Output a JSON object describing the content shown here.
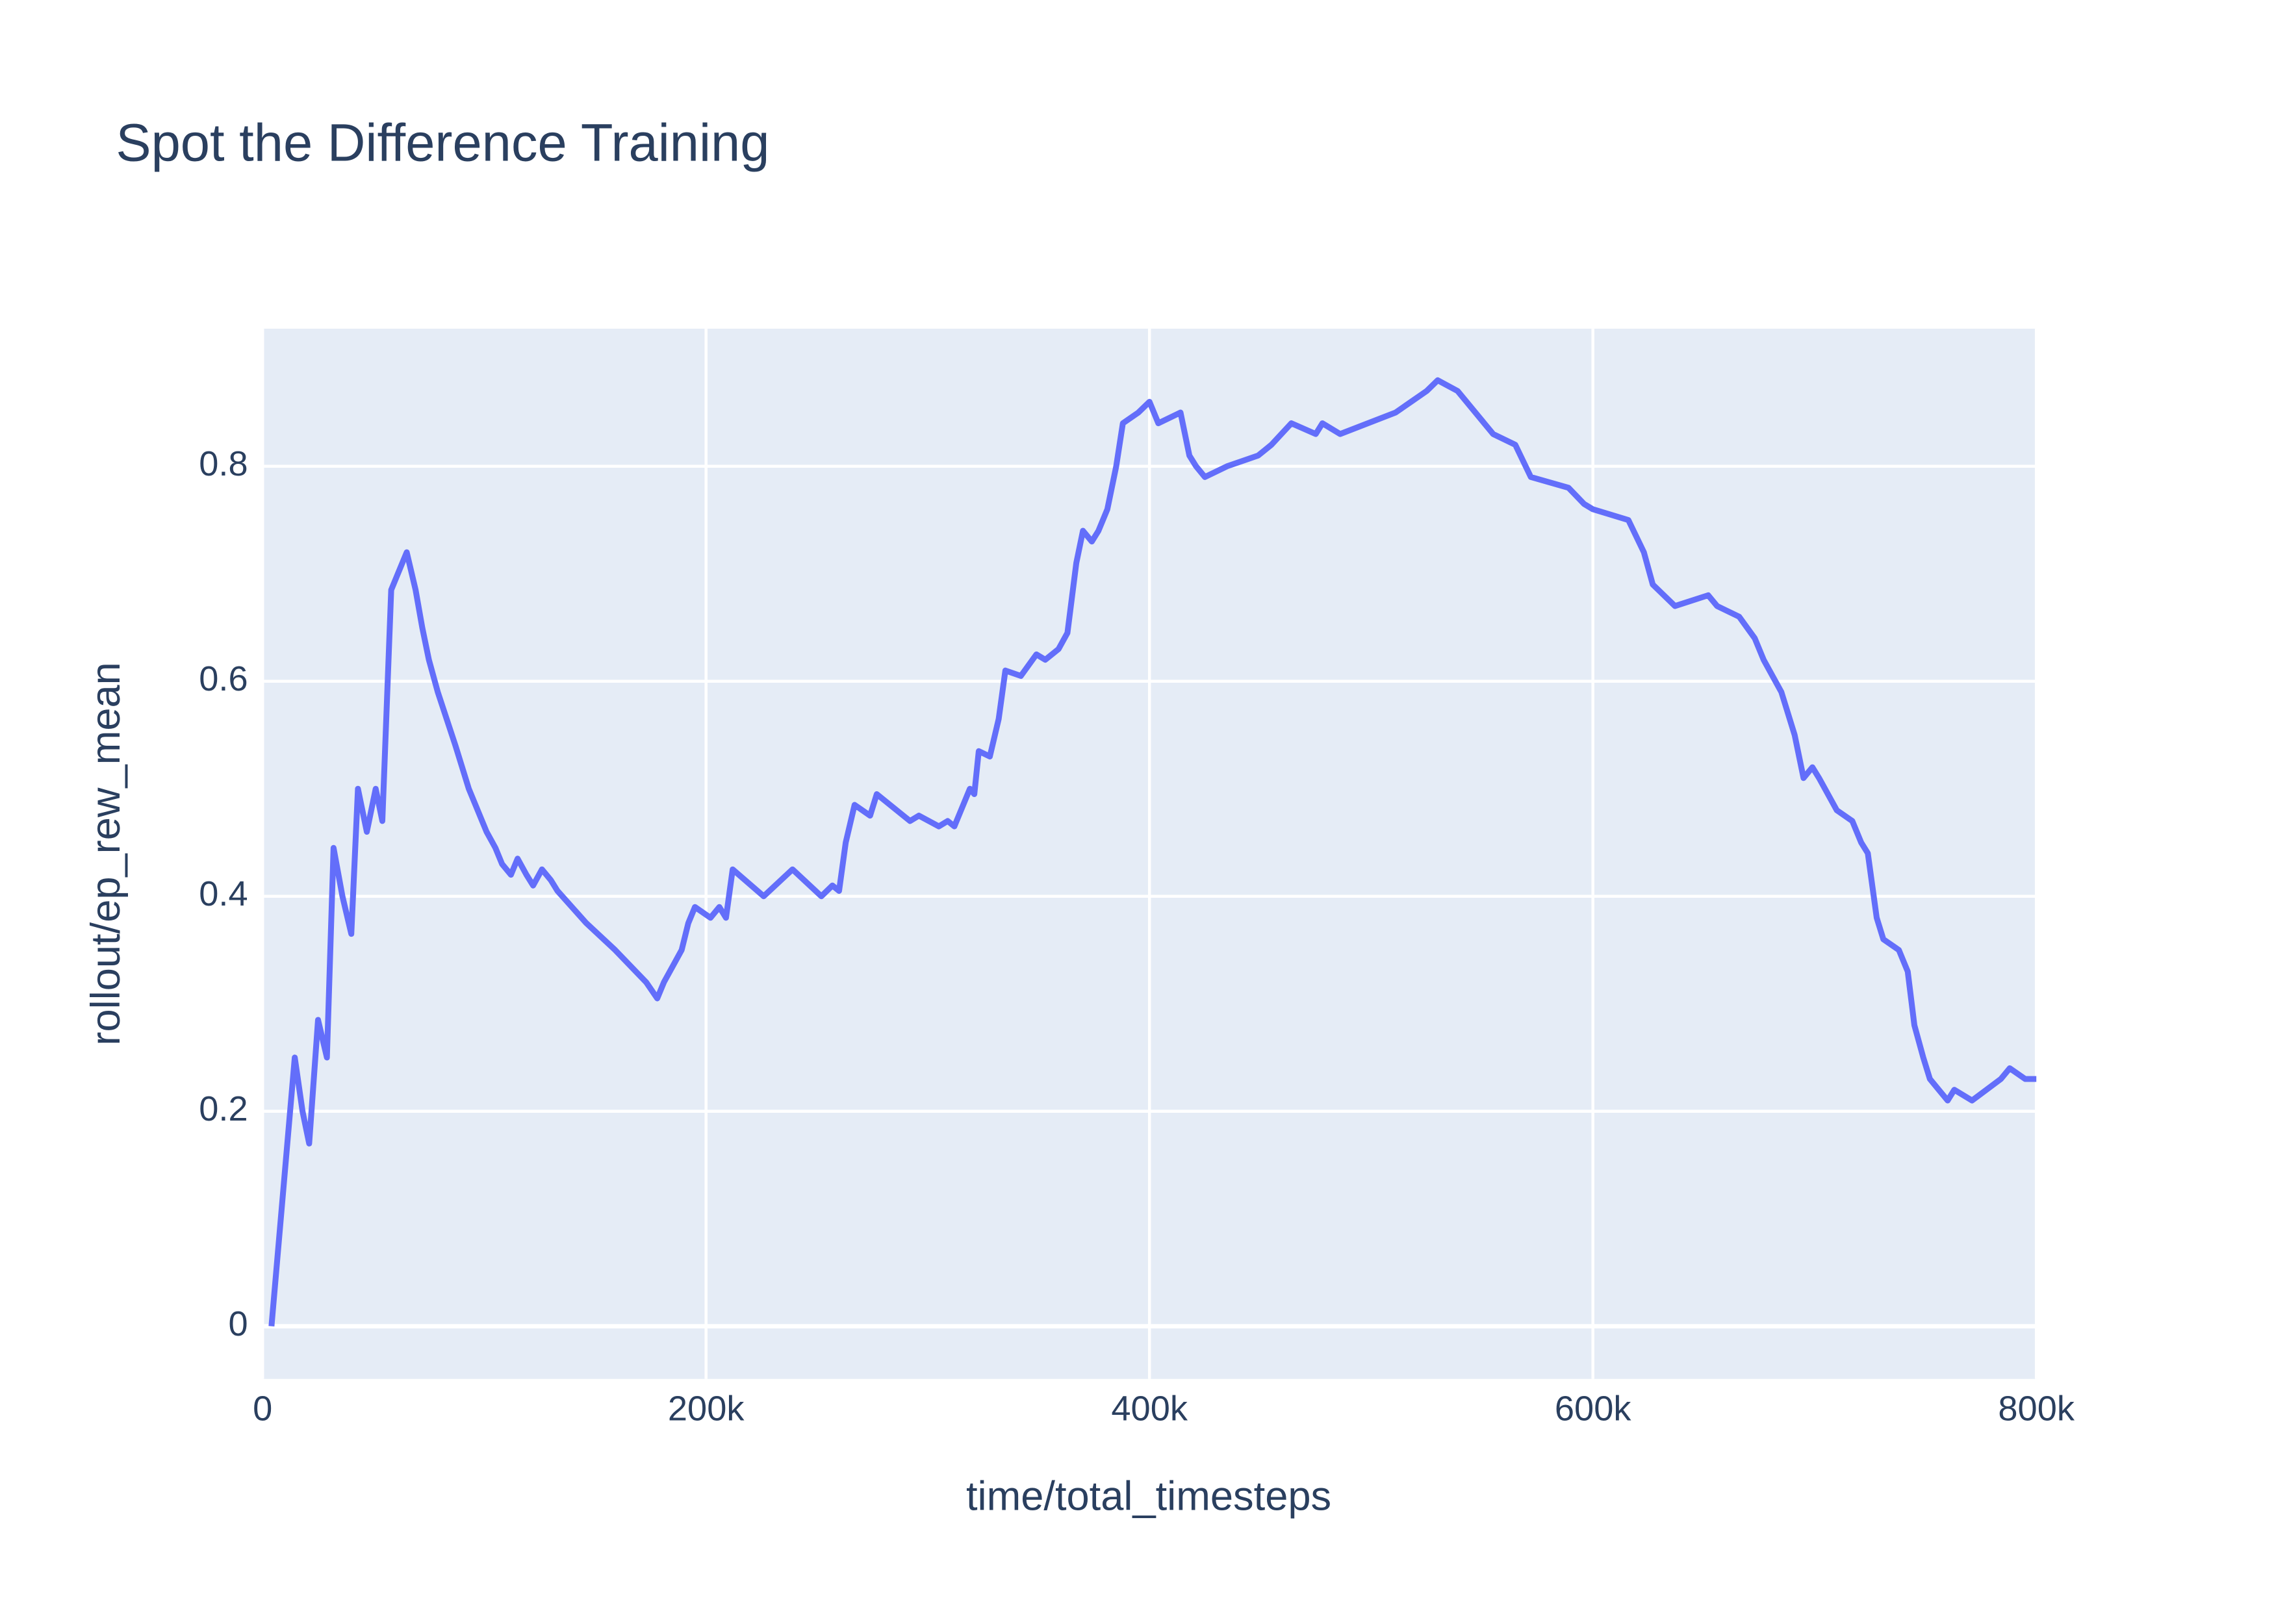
{
  "chart_data": {
    "type": "line",
    "title": "Spot the Difference Training",
    "x_label": "time/total_timesteps",
    "y_label": "rollout/ep_rew_mean",
    "x": [
      4000,
      14500,
      18000,
      21000,
      25000,
      29000,
      32000,
      36000,
      40000,
      43000,
      47000,
      51000,
      54000,
      58000,
      61000,
      65000,
      69000,
      72000,
      75000,
      79000,
      83000,
      87000,
      90000,
      93000,
      97000,
      101000,
      105000,
      108000,
      112000,
      115000,
      119000,
      122000,
      126000,
      130000,
      133000,
      146000,
      159000,
      173000,
      178000,
      181000,
      185000,
      189000,
      192000,
      195000,
      202000,
      206000,
      209000,
      212000,
      226000,
      239000,
      252000,
      257000,
      260000,
      263000,
      267000,
      274000,
      277000,
      292000,
      296000,
      305000,
      309000,
      312000,
      316000,
      319000,
      321000,
      323000,
      328000,
      332000,
      335000,
      342000,
      349000,
      353000,
      359000,
      363000,
      367000,
      370000,
      374000,
      377000,
      381000,
      385000,
      388000,
      395000,
      400000,
      404000,
      414000,
      418000,
      421000,
      425000,
      435000,
      449000,
      452000,
      455000,
      464000,
      475000,
      478000,
      486000,
      511000,
      518000,
      525000,
      530000,
      539000,
      543000,
      551000,
      555000,
      565000,
      572000,
      589000,
      596000,
      600000,
      616000,
      623000,
      627000,
      637000,
      652000,
      656000,
      666000,
      673000,
      677000,
      685000,
      691000,
      695000,
      699000,
      702000,
      710000,
      717000,
      721000,
      724000,
      728000,
      731000,
      738000,
      742000,
      745000,
      749000,
      752000,
      756000,
      760000,
      763000,
      771000,
      784000,
      788000,
      795000,
      800000
    ],
    "series": [
      {
        "name": "rollout/ep_rew_mean",
        "color": "#636efa",
        "values": [
          0,
          0.25,
          0.2,
          0.17,
          0.285,
          0.25,
          0.445,
          0.4,
          0.365,
          0.5,
          0.46,
          0.5,
          0.47,
          0.685,
          0.7,
          0.72,
          0.685,
          0.65,
          0.62,
          0.59,
          0.565,
          0.54,
          0.52,
          0.5,
          0.48,
          0.46,
          0.445,
          0.43,
          0.42,
          0.435,
          0.42,
          0.41,
          0.425,
          0.415,
          0.405,
          0.375,
          0.35,
          0.32,
          0.305,
          0.32,
          0.335,
          0.35,
          0.375,
          0.39,
          0.38,
          0.39,
          0.38,
          0.425,
          0.4,
          0.425,
          0.4,
          0.41,
          0.405,
          0.45,
          0.485,
          0.475,
          0.495,
          0.47,
          0.475,
          0.465,
          0.47,
          0.465,
          0.485,
          0.5,
          0.495,
          0.535,
          0.53,
          0.565,
          0.61,
          0.605,
          0.625,
          0.62,
          0.63,
          0.645,
          0.71,
          0.74,
          0.73,
          0.74,
          0.76,
          0.8,
          0.84,
          0.85,
          0.86,
          0.84,
          0.85,
          0.81,
          0.8,
          0.79,
          0.8,
          0.81,
          0.815,
          0.82,
          0.84,
          0.83,
          0.84,
          0.83,
          0.85,
          0.86,
          0.87,
          0.88,
          0.87,
          0.86,
          0.84,
          0.83,
          0.82,
          0.79,
          0.78,
          0.765,
          0.76,
          0.75,
          0.72,
          0.69,
          0.67,
          0.68,
          0.67,
          0.66,
          0.64,
          0.62,
          0.59,
          0.55,
          0.51,
          0.52,
          0.51,
          0.48,
          0.47,
          0.45,
          0.44,
          0.38,
          0.36,
          0.35,
          0.33,
          0.28,
          0.25,
          0.23,
          0.22,
          0.21,
          0.22,
          0.21,
          0.23,
          0.24,
          0.23,
          0.23
        ]
      }
    ],
    "xlim": [
      0,
      800000
    ],
    "xticks": [
      0,
      {
        "value": 200000,
        "label": "200k"
      },
      {
        "value": 400000,
        "label": "400k"
      },
      {
        "value": 600000,
        "label": "600k"
      },
      {
        "value": 800000,
        "label": "800k"
      }
    ],
    "ylim": [
      -0.049,
      0.928
    ],
    "yticks": [
      0,
      0.2,
      0.4,
      0.6,
      0.8
    ],
    "grid": true,
    "background": "#e5ecf6"
  }
}
